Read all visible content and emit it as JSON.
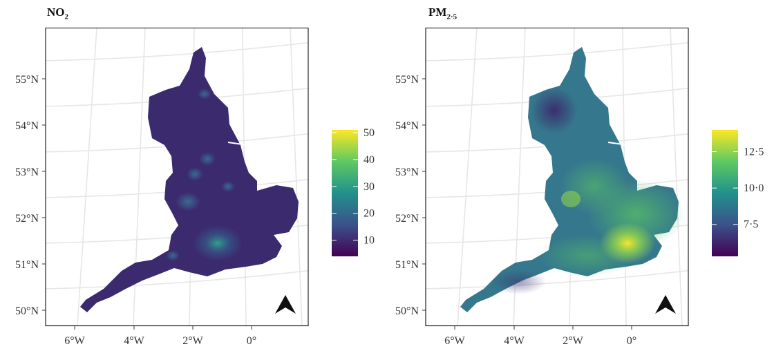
{
  "panels": [
    {
      "title_main": "NO",
      "title_sub": "2",
      "legend": {
        "ticks": [
          "50",
          "40",
          "30",
          "20",
          "10"
        ],
        "tick_values": [
          50,
          40,
          30,
          20,
          10
        ],
        "range": [
          4,
          51
        ]
      },
      "background_color": "#3b2a6e",
      "hotspot_color": "#2d9b8a"
    },
    {
      "title_main": "PM",
      "title_sub": "2·5",
      "legend": {
        "ticks": [
          "12·5",
          "10·0",
          "7·5"
        ],
        "tick_values": [
          12.5,
          10.0,
          7.5
        ],
        "range": [
          5.3,
          14.0
        ]
      },
      "background_color": "#3d8a8f",
      "hotspot_color": "#f1e51d"
    }
  ],
  "axes": {
    "lat_labels": [
      "55°N",
      "54°N",
      "53°N",
      "52°N",
      "51°N",
      "50°N"
    ],
    "lon_labels": [
      "6°W",
      "4°W",
      "2°W",
      "0°"
    ]
  },
  "colors": {
    "viridis": [
      "#440154",
      "#3b528b",
      "#21918c",
      "#5ec962",
      "#fde725"
    ],
    "frame": "#222222",
    "grid": "#e6e6e6"
  },
  "north_arrow_icon": "north-arrow-icon"
}
